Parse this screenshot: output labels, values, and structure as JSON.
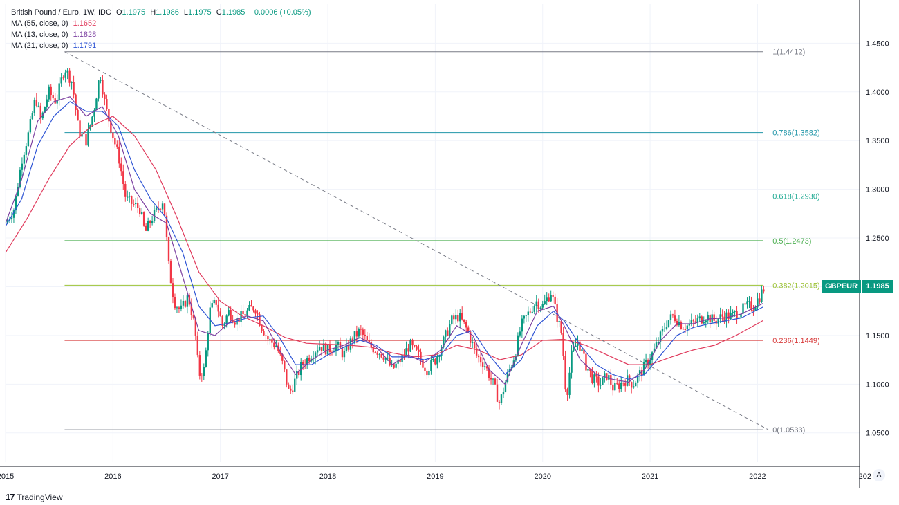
{
  "header": {
    "symbol": "British Pound / Euro, 1W, IDC",
    "open_label": "O",
    "open": "1.1975",
    "high_label": "H",
    "high": "1.1986",
    "low_label": "L",
    "low": "1.1975",
    "close_label": "C",
    "close": "1.1985",
    "change": "+0.0006 (+0.05%)"
  },
  "ma_legend": [
    {
      "label": "MA (55, close, 0)",
      "value": "1.1652",
      "color": "#e03a5c"
    },
    {
      "label": "MA (13, close, 0)",
      "value": "1.1828",
      "color": "#7b3fa0"
    },
    {
      "label": "MA (21, close, 0)",
      "value": "1.1791",
      "color": "#2f55d4"
    }
  ],
  "price_tag": {
    "symbol": "GBPEUR",
    "value": "1.1985",
    "color": "#089981"
  },
  "branding": {
    "name": "TradingView",
    "logo_text": "17"
  },
  "auto_button": "A",
  "chart_data": {
    "type": "candlestick",
    "ylim": [
      1.02,
      1.49
    ],
    "xlim": [
      2015.0,
      2022.95
    ],
    "y_ticks": [
      "1.4500",
      "1.4000",
      "1.3500",
      "1.3000",
      "1.2500",
      "1.2000",
      "1.1500",
      "1.1000",
      "1.0500"
    ],
    "x_ticks": [
      "2015",
      "2016",
      "2017",
      "2018",
      "2019",
      "2020",
      "2021",
      "2022",
      "202"
    ],
    "up_color": "#089981",
    "down_color": "#f23645",
    "fib_levels": [
      {
        "ratio": "1",
        "value": 1.4412,
        "label": "1(1.4412)",
        "color": "#787b86"
      },
      {
        "ratio": "0.786",
        "value": 1.3582,
        "label": "0.786(1.3582)",
        "color": "#2196a8"
      },
      {
        "ratio": "0.618",
        "value": 1.293,
        "label": "0.618(1.2930)",
        "color": "#22ab94"
      },
      {
        "ratio": "0.5",
        "value": 1.2473,
        "label": "0.5(1.2473)",
        "color": "#4caf50"
      },
      {
        "ratio": "0.382",
        "value": 1.2015,
        "label": "0.382(1.2015)",
        "color": "#9cc234"
      },
      {
        "ratio": "0.236",
        "value": 1.1449,
        "label": "0.236(1.1449)",
        "color": "#d83c3c"
      },
      {
        "ratio": "0",
        "value": 1.0533,
        "label": "0(1.0533)",
        "color": "#787b86"
      }
    ],
    "fib_x_range": [
      2015.55,
      2022.05
    ],
    "trendline": {
      "from": [
        2015.55,
        1.4412
      ],
      "to": [
        2022.1,
        1.0533
      ]
    },
    "price_path": [
      [
        2015.0,
        1.265
      ],
      [
        2015.08,
        1.28
      ],
      [
        2015.15,
        1.33
      ],
      [
        2015.22,
        1.36
      ],
      [
        2015.28,
        1.395
      ],
      [
        2015.33,
        1.37
      ],
      [
        2015.4,
        1.4
      ],
      [
        2015.47,
        1.39
      ],
      [
        2015.55,
        1.425
      ],
      [
        2015.62,
        1.41
      ],
      [
        2015.68,
        1.36
      ],
      [
        2015.75,
        1.35
      ],
      [
        2015.82,
        1.38
      ],
      [
        2015.88,
        1.42
      ],
      [
        2015.93,
        1.385
      ],
      [
        2016.0,
        1.355
      ],
      [
        2016.06,
        1.33
      ],
      [
        2016.12,
        1.29
      ],
      [
        2016.18,
        1.285
      ],
      [
        2016.25,
        1.28
      ],
      [
        2016.3,
        1.255
      ],
      [
        2016.36,
        1.27
      ],
      [
        2016.42,
        1.28
      ],
      [
        2016.47,
        1.29
      ],
      [
        2016.52,
        1.22
      ],
      [
        2016.57,
        1.185
      ],
      [
        2016.63,
        1.175
      ],
      [
        2016.7,
        1.19
      ],
      [
        2016.76,
        1.16
      ],
      [
        2016.8,
        1.11
      ],
      [
        2016.85,
        1.115
      ],
      [
        2016.9,
        1.175
      ],
      [
        2016.96,
        1.185
      ],
      [
        2017.02,
        1.16
      ],
      [
        2017.08,
        1.175
      ],
      [
        2017.14,
        1.165
      ],
      [
        2017.2,
        1.17
      ],
      [
        2017.26,
        1.175
      ],
      [
        2017.32,
        1.18
      ],
      [
        2017.38,
        1.16
      ],
      [
        2017.45,
        1.145
      ],
      [
        2017.52,
        1.14
      ],
      [
        2017.58,
        1.12
      ],
      [
        2017.64,
        1.09
      ],
      [
        2017.7,
        1.105
      ],
      [
        2017.76,
        1.12
      ],
      [
        2017.84,
        1.13
      ],
      [
        2017.92,
        1.14
      ],
      [
        2018.0,
        1.135
      ],
      [
        2018.08,
        1.14
      ],
      [
        2018.15,
        1.13
      ],
      [
        2018.22,
        1.145
      ],
      [
        2018.3,
        1.155
      ],
      [
        2018.38,
        1.14
      ],
      [
        2018.45,
        1.135
      ],
      [
        2018.52,
        1.13
      ],
      [
        2018.6,
        1.115
      ],
      [
        2018.68,
        1.125
      ],
      [
        2018.76,
        1.14
      ],
      [
        2018.84,
        1.13
      ],
      [
        2018.92,
        1.115
      ],
      [
        2019.0,
        1.125
      ],
      [
        2019.08,
        1.145
      ],
      [
        2019.15,
        1.165
      ],
      [
        2019.22,
        1.17
      ],
      [
        2019.3,
        1.155
      ],
      [
        2019.38,
        1.13
      ],
      [
        2019.46,
        1.12
      ],
      [
        2019.54,
        1.1
      ],
      [
        2019.6,
        1.08
      ],
      [
        2019.66,
        1.105
      ],
      [
        2019.74,
        1.13
      ],
      [
        2019.8,
        1.16
      ],
      [
        2019.88,
        1.175
      ],
      [
        2019.94,
        1.185
      ],
      [
        2020.0,
        1.18
      ],
      [
        2020.08,
        1.195
      ],
      [
        2020.12,
        1.175
      ],
      [
        2020.18,
        1.15
      ],
      [
        2020.22,
        1.085
      ],
      [
        2020.27,
        1.13
      ],
      [
        2020.33,
        1.145
      ],
      [
        2020.4,
        1.12
      ],
      [
        2020.47,
        1.105
      ],
      [
        2020.54,
        1.1
      ],
      [
        2020.6,
        1.11
      ],
      [
        2020.66,
        1.095
      ],
      [
        2020.72,
        1.1
      ],
      [
        2020.78,
        1.105
      ],
      [
        2020.84,
        1.1
      ],
      [
        2020.9,
        1.11
      ],
      [
        2020.96,
        1.12
      ],
      [
        2021.04,
        1.135
      ],
      [
        2021.1,
        1.15
      ],
      [
        2021.16,
        1.165
      ],
      [
        2021.22,
        1.17
      ],
      [
        2021.3,
        1.16
      ],
      [
        2021.36,
        1.16
      ],
      [
        2021.44,
        1.165
      ],
      [
        2021.52,
        1.17
      ],
      [
        2021.6,
        1.165
      ],
      [
        2021.68,
        1.17
      ],
      [
        2021.76,
        1.17
      ],
      [
        2021.84,
        1.175
      ],
      [
        2021.9,
        1.18
      ],
      [
        2021.96,
        1.18
      ],
      [
        2022.02,
        1.19
      ],
      [
        2022.06,
        1.1985
      ]
    ],
    "ma55_path": [
      [
        2015.0,
        1.235
      ],
      [
        2015.2,
        1.27
      ],
      [
        2015.4,
        1.31
      ],
      [
        2015.6,
        1.345
      ],
      [
        2015.8,
        1.365
      ],
      [
        2016.0,
        1.375
      ],
      [
        2016.2,
        1.355
      ],
      [
        2016.4,
        1.32
      ],
      [
        2016.6,
        1.27
      ],
      [
        2016.8,
        1.215
      ],
      [
        2017.0,
        1.185
      ],
      [
        2017.2,
        1.17
      ],
      [
        2017.4,
        1.16
      ],
      [
        2017.6,
        1.148
      ],
      [
        2017.8,
        1.142
      ],
      [
        2018.0,
        1.141
      ],
      [
        2018.2,
        1.14
      ],
      [
        2018.4,
        1.138
      ],
      [
        2018.6,
        1.132
      ],
      [
        2018.8,
        1.128
      ],
      [
        2019.0,
        1.13
      ],
      [
        2019.2,
        1.14
      ],
      [
        2019.4,
        1.135
      ],
      [
        2019.6,
        1.125
      ],
      [
        2019.8,
        1.13
      ],
      [
        2020.0,
        1.145
      ],
      [
        2020.2,
        1.146
      ],
      [
        2020.4,
        1.14
      ],
      [
        2020.6,
        1.13
      ],
      [
        2020.8,
        1.12
      ],
      [
        2021.0,
        1.12
      ],
      [
        2021.2,
        1.128
      ],
      [
        2021.4,
        1.135
      ],
      [
        2021.6,
        1.14
      ],
      [
        2021.8,
        1.15
      ],
      [
        2022.05,
        1.1652
      ]
    ],
    "ma13_path": [
      [
        2015.0,
        1.265
      ],
      [
        2015.15,
        1.31
      ],
      [
        2015.3,
        1.37
      ],
      [
        2015.45,
        1.39
      ],
      [
        2015.6,
        1.395
      ],
      [
        2015.75,
        1.375
      ],
      [
        2015.9,
        1.385
      ],
      [
        2016.05,
        1.355
      ],
      [
        2016.2,
        1.3
      ],
      [
        2016.35,
        1.275
      ],
      [
        2016.5,
        1.265
      ],
      [
        2016.65,
        1.21
      ],
      [
        2016.8,
        1.155
      ],
      [
        2016.95,
        1.15
      ],
      [
        2017.1,
        1.165
      ],
      [
        2017.25,
        1.17
      ],
      [
        2017.4,
        1.165
      ],
      [
        2017.55,
        1.135
      ],
      [
        2017.7,
        1.11
      ],
      [
        2017.85,
        1.125
      ],
      [
        2018.0,
        1.135
      ],
      [
        2018.15,
        1.14
      ],
      [
        2018.3,
        1.148
      ],
      [
        2018.45,
        1.138
      ],
      [
        2018.6,
        1.12
      ],
      [
        2018.75,
        1.13
      ],
      [
        2018.9,
        1.122
      ],
      [
        2019.05,
        1.135
      ],
      [
        2019.2,
        1.16
      ],
      [
        2019.35,
        1.15
      ],
      [
        2019.5,
        1.115
      ],
      [
        2019.65,
        1.1
      ],
      [
        2019.8,
        1.14
      ],
      [
        2019.95,
        1.175
      ],
      [
        2020.1,
        1.18
      ],
      [
        2020.2,
        1.16
      ],
      [
        2020.35,
        1.125
      ],
      [
        2020.5,
        1.11
      ],
      [
        2020.65,
        1.105
      ],
      [
        2020.8,
        1.102
      ],
      [
        2020.95,
        1.115
      ],
      [
        2021.1,
        1.145
      ],
      [
        2021.25,
        1.162
      ],
      [
        2021.4,
        1.162
      ],
      [
        2021.55,
        1.167
      ],
      [
        2021.7,
        1.168
      ],
      [
        2021.85,
        1.172
      ],
      [
        2022.05,
        1.1828
      ]
    ],
    "ma21_path": [
      [
        2015.0,
        1.262
      ],
      [
        2015.15,
        1.29
      ],
      [
        2015.3,
        1.345
      ],
      [
        2015.45,
        1.375
      ],
      [
        2015.6,
        1.39
      ],
      [
        2015.75,
        1.38
      ],
      [
        2015.9,
        1.38
      ],
      [
        2016.05,
        1.365
      ],
      [
        2016.2,
        1.32
      ],
      [
        2016.35,
        1.29
      ],
      [
        2016.5,
        1.27
      ],
      [
        2016.65,
        1.235
      ],
      [
        2016.8,
        1.18
      ],
      [
        2016.95,
        1.16
      ],
      [
        2017.1,
        1.163
      ],
      [
        2017.25,
        1.168
      ],
      [
        2017.4,
        1.17
      ],
      [
        2017.55,
        1.148
      ],
      [
        2017.7,
        1.12
      ],
      [
        2017.85,
        1.12
      ],
      [
        2018.0,
        1.13
      ],
      [
        2018.15,
        1.138
      ],
      [
        2018.3,
        1.145
      ],
      [
        2018.45,
        1.14
      ],
      [
        2018.6,
        1.128
      ],
      [
        2018.75,
        1.128
      ],
      [
        2018.9,
        1.125
      ],
      [
        2019.05,
        1.13
      ],
      [
        2019.2,
        1.15
      ],
      [
        2019.35,
        1.155
      ],
      [
        2019.5,
        1.13
      ],
      [
        2019.65,
        1.11
      ],
      [
        2019.8,
        1.125
      ],
      [
        2019.95,
        1.16
      ],
      [
        2020.1,
        1.175
      ],
      [
        2020.2,
        1.165
      ],
      [
        2020.35,
        1.14
      ],
      [
        2020.5,
        1.12
      ],
      [
        2020.65,
        1.11
      ],
      [
        2020.8,
        1.105
      ],
      [
        2020.95,
        1.11
      ],
      [
        2021.1,
        1.13
      ],
      [
        2021.25,
        1.15
      ],
      [
        2021.4,
        1.158
      ],
      [
        2021.55,
        1.162
      ],
      [
        2021.7,
        1.165
      ],
      [
        2021.85,
        1.168
      ],
      [
        2022.05,
        1.1791
      ]
    ]
  }
}
